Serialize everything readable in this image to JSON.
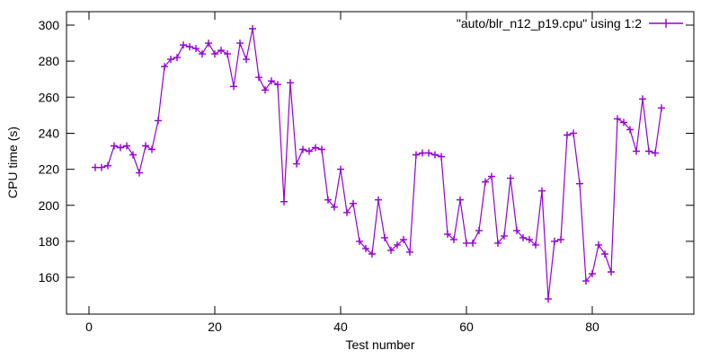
{
  "chart_data": {
    "type": "line",
    "title": "",
    "legend": "\"auto/blr_n12_p19.cpu\" using 1:2",
    "legend_position": "top-right-inside",
    "xlabel": "Test number",
    "ylabel": "CPU time (s)",
    "grid": false,
    "marker": "plus",
    "line_color": "#9400D3",
    "background_color": "#FFFFFF",
    "text_color": "#000000",
    "border_color": "#000000",
    "x_ticks": [
      0,
      20,
      40,
      60,
      80
    ],
    "y_ticks": [
      160,
      180,
      200,
      220,
      240,
      260,
      280,
      300
    ],
    "x_range": [
      -3.5,
      96
    ],
    "y_range": [
      139,
      307
    ],
    "x_start": 1,
    "x_step": 1,
    "x": [
      1,
      2,
      3,
      4,
      5,
      6,
      7,
      8,
      9,
      10,
      11,
      12,
      13,
      14,
      15,
      16,
      17,
      18,
      19,
      20,
      21,
      22,
      23,
      24,
      25,
      26,
      27,
      28,
      29,
      30,
      31,
      32,
      33,
      34,
      35,
      36,
      37,
      38,
      39,
      40,
      41,
      42,
      43,
      44,
      45,
      46,
      47,
      48,
      49,
      50,
      51,
      52,
      53,
      54,
      55,
      56,
      57,
      58,
      59,
      60,
      61,
      62,
      63,
      64,
      65,
      66,
      67,
      68,
      69,
      70,
      71,
      72,
      73,
      74,
      75,
      76,
      77,
      78,
      79,
      80,
      81,
      82,
      83,
      84,
      85,
      86,
      87,
      88,
      89,
      90,
      91
    ],
    "values": [
      221,
      221,
      222,
      233,
      232,
      233,
      228,
      218,
      233,
      231,
      247,
      277,
      281,
      282,
      289,
      288,
      287,
      284,
      290,
      284,
      286,
      284,
      266,
      290,
      281,
      298,
      271,
      264,
      269,
      267,
      202,
      268,
      223,
      231,
      230,
      232,
      231,
      203,
      199,
      220,
      196,
      201,
      180,
      176,
      173,
      203,
      182,
      175,
      178,
      181,
      174,
      228,
      229,
      229,
      228,
      227,
      184,
      181,
      203,
      179,
      179,
      186,
      213,
      216,
      179,
      183,
      215,
      186,
      182,
      181,
      178,
      208,
      148,
      180,
      181,
      239,
      240,
      212,
      158,
      162,
      178,
      173,
      163,
      248,
      246,
      242,
      230,
      259,
      230,
      229,
      254
    ]
  }
}
